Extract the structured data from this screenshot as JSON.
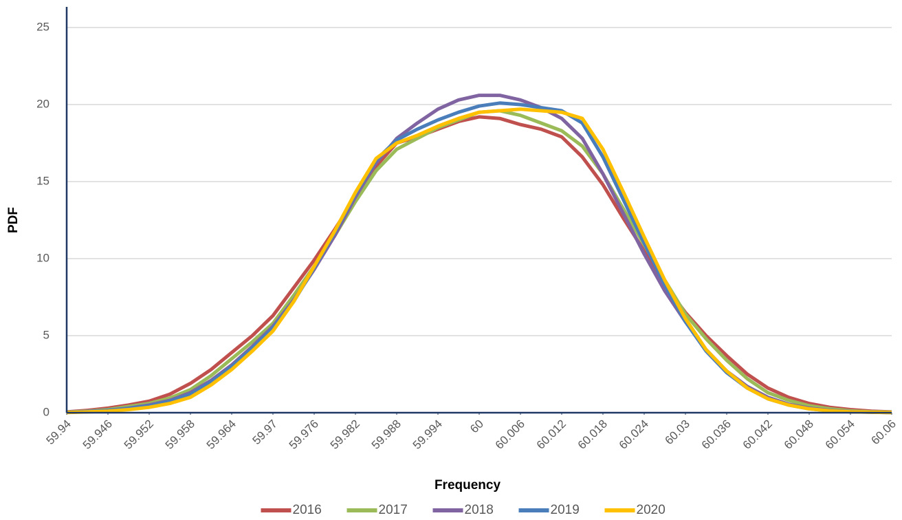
{
  "chart_data": {
    "type": "line",
    "x_label": "Frequency",
    "y_label": "PDF",
    "x": [
      59.94,
      59.943,
      59.946,
      59.949,
      59.952,
      59.955,
      59.958,
      59.961,
      59.964,
      59.967,
      59.97,
      59.973,
      59.976,
      59.979,
      59.982,
      59.985,
      59.988,
      59.991,
      59.994,
      59.997,
      60,
      60.003,
      60.006,
      60.009,
      60.012,
      60.015,
      60.018,
      60.021,
      60.024,
      60.027,
      60.03,
      60.033,
      60.036,
      60.039,
      60.042,
      60.045,
      60.048,
      60.051,
      60.054,
      60.057,
      60.06
    ],
    "series": [
      {
        "name": "2016",
        "color": "#c0504d",
        "values": [
          0.05,
          0.15,
          0.3,
          0.5,
          0.75,
          1.2,
          1.9,
          2.8,
          3.9,
          5.0,
          6.3,
          8.1,
          9.9,
          11.9,
          14.0,
          16.0,
          17.5,
          17.9,
          18.4,
          18.9,
          19.2,
          19.1,
          18.7,
          18.4,
          17.9,
          16.6,
          14.8,
          12.6,
          10.5,
          8.3,
          6.5,
          5.0,
          3.7,
          2.5,
          1.6,
          1.0,
          0.6,
          0.35,
          0.2,
          0.1,
          0.05
        ]
      },
      {
        "name": "2017",
        "color": "#9bbb59",
        "values": [
          0.03,
          0.1,
          0.2,
          0.4,
          0.6,
          0.95,
          1.5,
          2.4,
          3.5,
          4.6,
          5.8,
          7.6,
          9.5,
          11.5,
          13.7,
          15.7,
          17.1,
          17.8,
          18.5,
          19.0,
          19.5,
          19.6,
          19.3,
          18.8,
          18.3,
          17.3,
          15.5,
          13.2,
          10.9,
          8.6,
          6.4,
          4.8,
          3.4,
          2.2,
          1.3,
          0.8,
          0.45,
          0.25,
          0.12,
          0.06,
          0.03
        ]
      },
      {
        "name": "2018",
        "color": "#8064a2",
        "values": [
          0.02,
          0.08,
          0.15,
          0.3,
          0.5,
          0.8,
          1.3,
          2.1,
          3.1,
          4.3,
          5.6,
          7.3,
          9.3,
          11.5,
          14.0,
          16.2,
          17.8,
          18.8,
          19.7,
          20.3,
          20.6,
          20.6,
          20.3,
          19.8,
          19.1,
          17.8,
          15.5,
          12.9,
          10.3,
          7.9,
          5.9,
          4.1,
          2.7,
          1.7,
          1.0,
          0.55,
          0.3,
          0.15,
          0.07,
          0.03,
          0.01
        ]
      },
      {
        "name": "2019",
        "color": "#4a7ebb",
        "values": [
          0.02,
          0.07,
          0.15,
          0.28,
          0.45,
          0.75,
          1.2,
          2.0,
          3.0,
          4.2,
          5.5,
          7.2,
          9.4,
          11.7,
          14.2,
          16.4,
          17.7,
          18.4,
          19.0,
          19.5,
          19.9,
          20.1,
          20.0,
          19.8,
          19.6,
          18.8,
          16.6,
          13.8,
          11.0,
          8.3,
          5.9,
          4.0,
          2.6,
          1.6,
          0.9,
          0.5,
          0.25,
          0.12,
          0.06,
          0.03,
          0.01
        ]
      },
      {
        "name": "2020",
        "color": "#ffc000",
        "values": [
          0.01,
          0.05,
          0.1,
          0.2,
          0.35,
          0.6,
          1.0,
          1.8,
          2.8,
          4.0,
          5.3,
          7.2,
          9.5,
          11.8,
          14.3,
          16.5,
          17.5,
          18.0,
          18.6,
          19.1,
          19.5,
          19.6,
          19.7,
          19.6,
          19.5,
          19.1,
          17.1,
          14.3,
          11.4,
          8.6,
          6.1,
          4.1,
          2.7,
          1.6,
          0.9,
          0.5,
          0.25,
          0.12,
          0.06,
          0.03,
          0.01
        ]
      }
    ],
    "xlim": [
      59.94,
      60.06
    ],
    "xticks": [
      59.94,
      59.946,
      59.952,
      59.958,
      59.964,
      59.97,
      59.976,
      59.982,
      59.988,
      59.994,
      60,
      60.006,
      60.012,
      60.018,
      60.024,
      60.03,
      60.036,
      60.042,
      60.048,
      60.054,
      60.06
    ],
    "ylim": [
      0,
      25
    ],
    "yticks": [
      0,
      5,
      10,
      15,
      20,
      25
    ],
    "grid": true,
    "legend": "bottom"
  }
}
